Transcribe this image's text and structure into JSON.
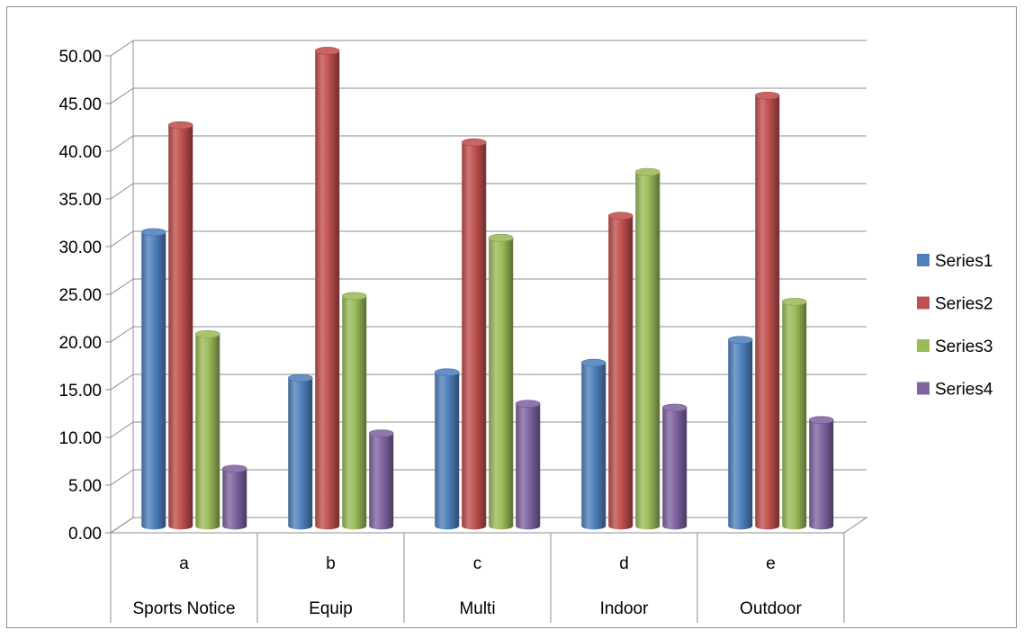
{
  "chart_data": {
    "type": "bar",
    "style": "3d-clustered-cylinder",
    "title": "",
    "xlabel": "",
    "ylabel": "",
    "ylim": [
      0,
      50
    ],
    "ytick_labels": [
      "0.00",
      "5.00",
      "10.00",
      "15.00",
      "20.00",
      "25.00",
      "30.00",
      "35.00",
      "40.00",
      "45.00",
      "50.00"
    ],
    "grid": true,
    "legend_position": "right",
    "categories": [
      "a",
      "b",
      "c",
      "d",
      "e"
    ],
    "category_sublabels": [
      "Sports Notice",
      "Equip",
      "Multi",
      "Indoor",
      "Outdoor"
    ],
    "series": [
      {
        "name": "Series1",
        "color": "#4F81BD",
        "values": [
          30.8,
          15.5,
          16.1,
          17.1,
          19.5
        ]
      },
      {
        "name": "Series2",
        "color": "#C0504D",
        "values": [
          42.0,
          49.8,
          40.2,
          32.5,
          45.1
        ]
      },
      {
        "name": "Series3",
        "color": "#9BBB59",
        "values": [
          20.1,
          24.1,
          30.2,
          37.1,
          23.5
        ]
      },
      {
        "name": "Series4",
        "color": "#8064A2",
        "values": [
          6.0,
          9.7,
          12.8,
          12.4,
          11.1
        ]
      }
    ]
  }
}
